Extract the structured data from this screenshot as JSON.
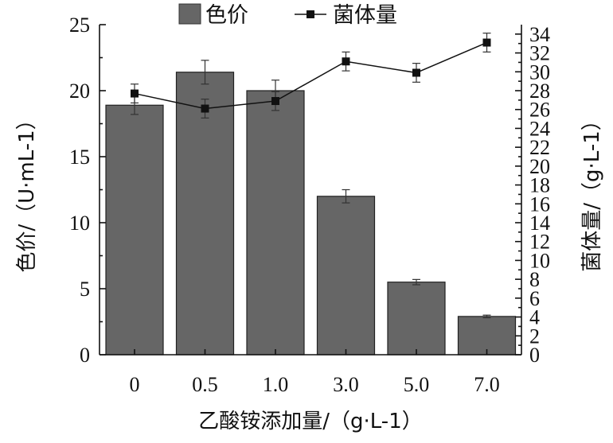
{
  "chart_data": {
    "type": "bar",
    "categories": [
      "0",
      "0.5",
      "1.0",
      "3.0",
      "5.0",
      "7.0"
    ],
    "xlabel": "乙酸铵添加量/（g·L-1）",
    "ylabel_left": "色价/（U·mL-1）",
    "ylabel_right": "菌体量/（g·L-1）",
    "ylim_left": [
      0,
      25
    ],
    "ylim_right": [
      0,
      35
    ],
    "yticks_left": [
      0,
      5,
      10,
      15,
      20,
      25
    ],
    "yticks_right": [
      0,
      2,
      4,
      6,
      8,
      10,
      12,
      14,
      16,
      18,
      20,
      22,
      24,
      26,
      28,
      30,
      32,
      34
    ],
    "series": [
      {
        "name": "色价",
        "kind": "bar",
        "axis": "left",
        "color": "#666666",
        "values": [
          18.9,
          21.4,
          20.0,
          12.0,
          5.5,
          2.9
        ],
        "errors": [
          0.7,
          0.9,
          0.8,
          0.5,
          0.2,
          0.1
        ]
      },
      {
        "name": "菌体量",
        "kind": "line",
        "axis": "right",
        "color": "#111111",
        "marker": "square",
        "values": [
          27.7,
          26.1,
          26.9,
          31.1,
          29.9,
          33.1
        ],
        "errors": [
          1.0,
          1.0,
          1.0,
          1.0,
          1.0,
          1.0
        ]
      }
    ],
    "legend_position": "top-center"
  }
}
